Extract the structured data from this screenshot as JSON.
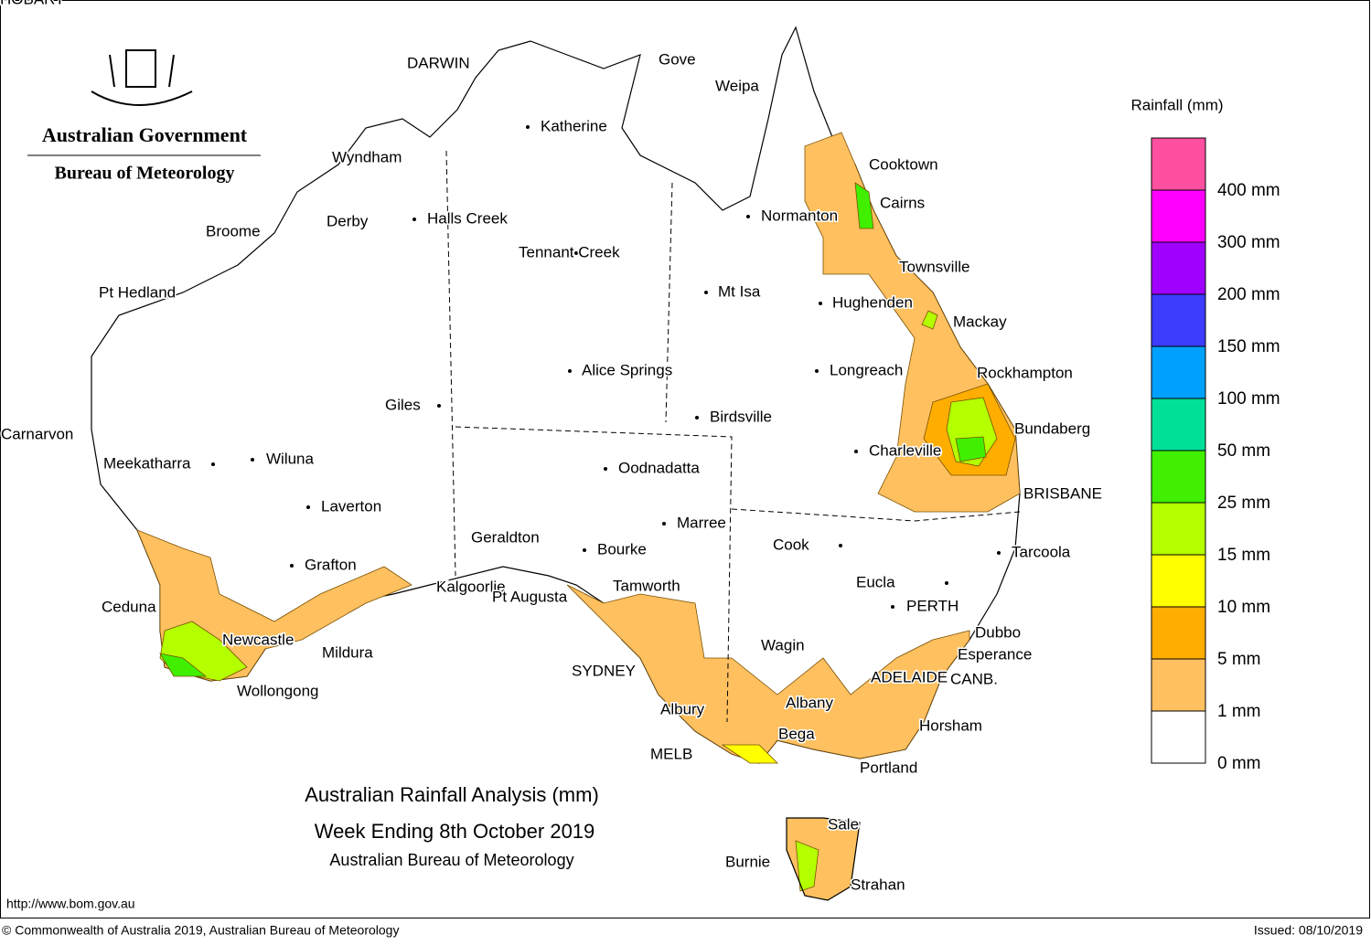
{
  "header": {
    "agency": "Australian Government",
    "bureau": "Bureau of Meteorology"
  },
  "map": {
    "title": "Australian Rainfall Analysis (mm)",
    "subtitle": "Week Ending 8th October 2019",
    "source": "Australian Bureau of Meteorology",
    "places": [
      "DARWIN",
      "Gove",
      "Weipa",
      "Katherine",
      "Cooktown",
      "Wyndham",
      "Cairns",
      "Normanton",
      "Broome",
      "Derby",
      "Halls Creek",
      "Tennant Creek",
      "Townsville",
      "Pt Hedland",
      "Mt Isa",
      "Hughenden",
      "Mackay",
      "Alice Springs",
      "Longreach",
      "Rockhampton",
      "Giles",
      "Birdsville",
      "Bundaberg",
      "Carnarvon",
      "Charleville",
      "Meekatharra",
      "Wiluna",
      "Oodnadatta",
      "BRISBANE",
      "Laverton",
      "Marree",
      "Geraldton",
      "Cook",
      "Bourke",
      "Tarcoola",
      "Grafton",
      "Kalgoorlie",
      "Eucla",
      "Tamworth",
      "Pt Augusta",
      "Ceduna",
      "PERTH",
      "Dubbo",
      "Newcastle",
      "Wagin",
      "Mildura",
      "Esperance",
      "SYDNEY",
      "ADELAIDE",
      "CANB.",
      "Wollongong",
      "Albany",
      "Albury",
      "Horsham",
      "Bega",
      "MELB",
      "Portland",
      "Sale",
      "Burnie",
      "Strahan",
      "HOBART"
    ]
  },
  "legend": {
    "title": "Rainfall (mm)",
    "items": [
      {
        "label": "400 mm",
        "color": "#ff4fa0"
      },
      {
        "label": "300 mm",
        "color": "#ff00ff"
      },
      {
        "label": "200 mm",
        "color": "#a000ff"
      },
      {
        "label": "150 mm",
        "color": "#3c3cff"
      },
      {
        "label": "100 mm",
        "color": "#00a0ff"
      },
      {
        "label": "50 mm",
        "color": "#00e098"
      },
      {
        "label": "25 mm",
        "color": "#40f000"
      },
      {
        "label": "15 mm",
        "color": "#b4ff00"
      },
      {
        "label": "10 mm",
        "color": "#ffff00"
      },
      {
        "label": "5 mm",
        "color": "#ffae00"
      },
      {
        "label": "1 mm",
        "color": "#ffc060"
      },
      {
        "label": "0 mm",
        "color": "#ffffff"
      }
    ]
  },
  "footer": {
    "url": "http://www.bom.gov.au",
    "copyright": "© Commonwealth of Australia 2019, Australian Bureau of Meteorology",
    "issued": "Issued: 08/10/2019"
  }
}
